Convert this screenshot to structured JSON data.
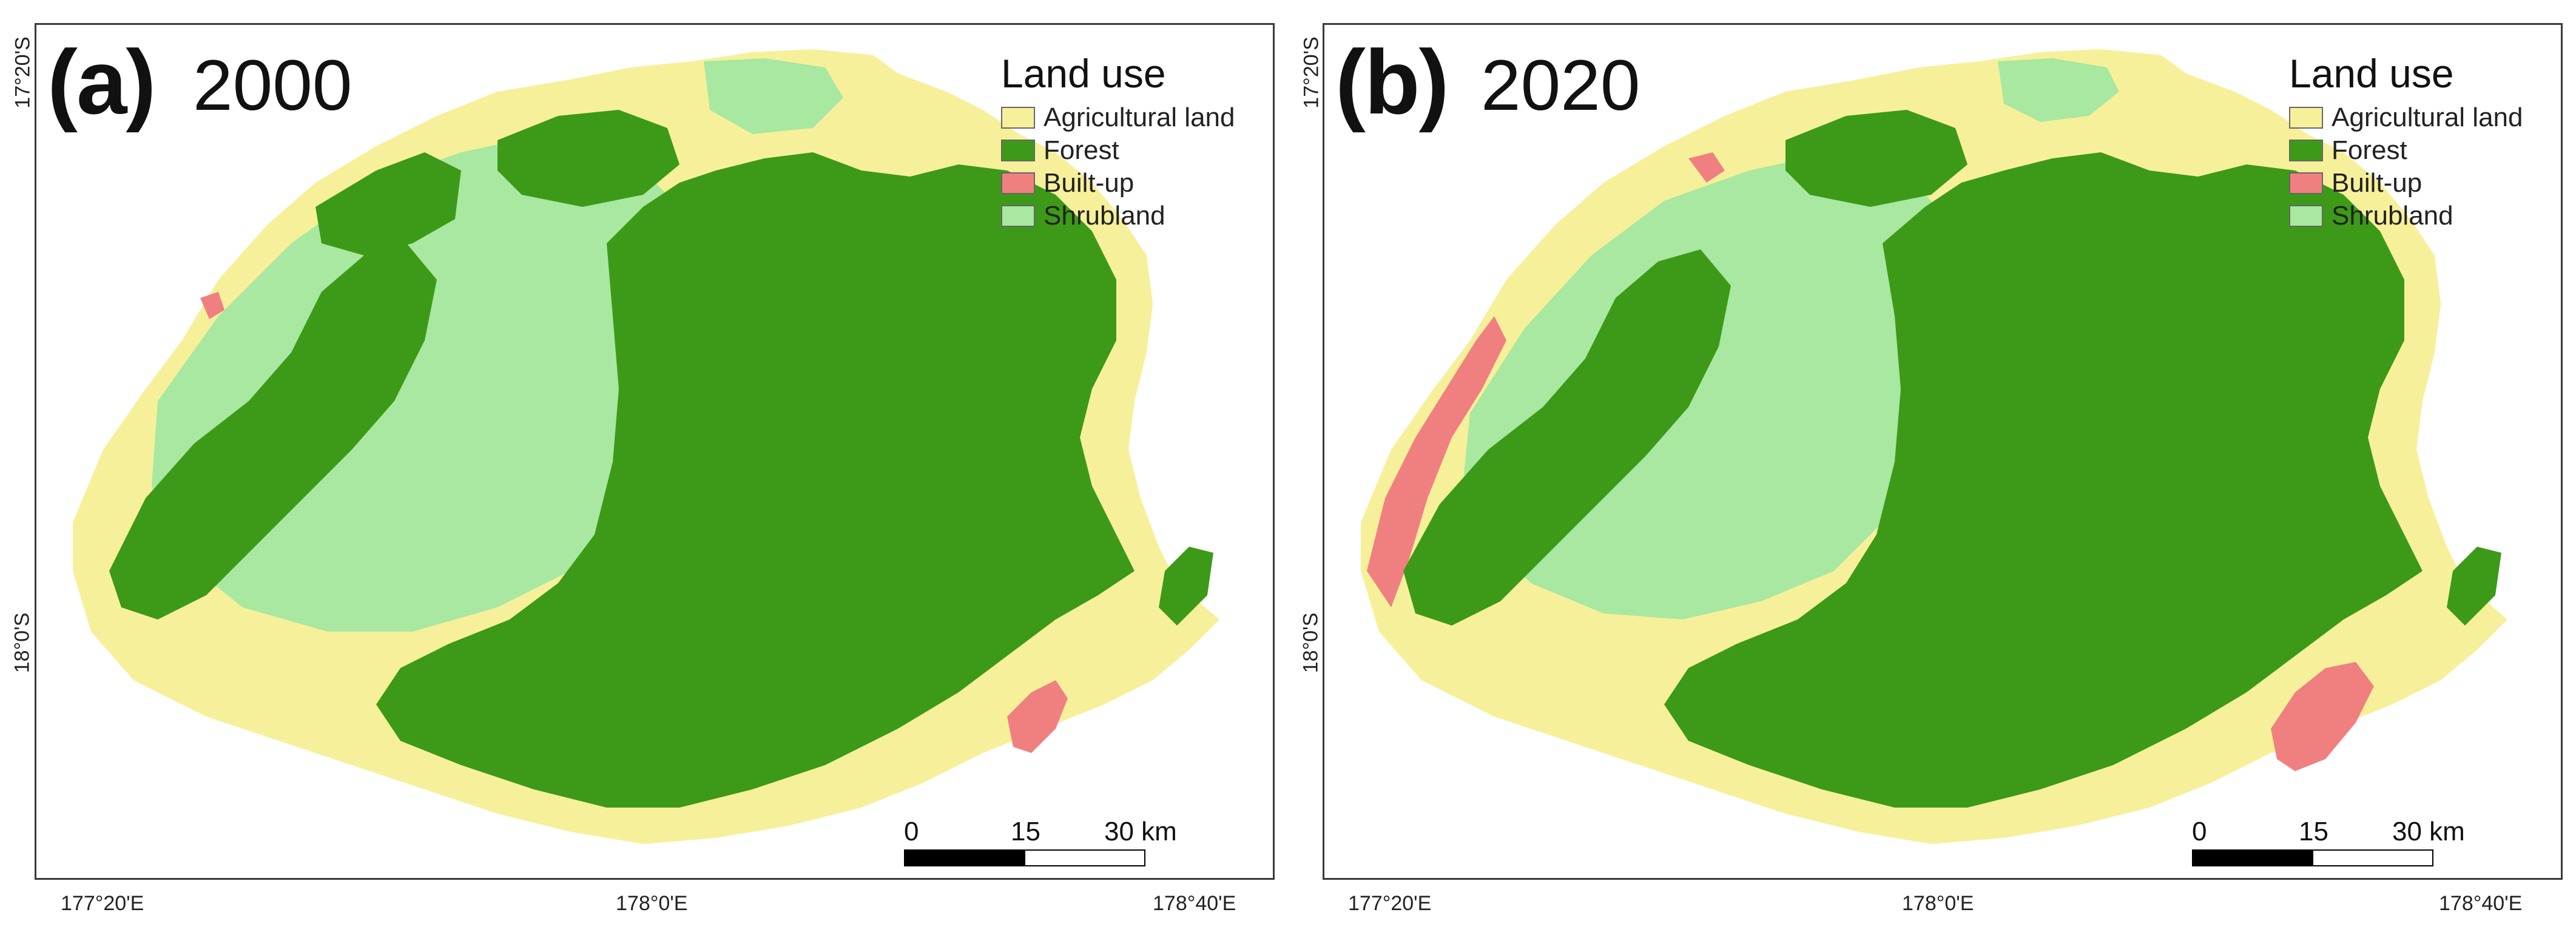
{
  "legend": {
    "title": "Land use",
    "items": [
      {
        "label": "Agricultural land",
        "color": "#f7f09a"
      },
      {
        "label": "Forest",
        "color": "#3c9a18"
      },
      {
        "label": "Built-up",
        "color": "#f08080"
      },
      {
        "label": "Shrubland",
        "color": "#a8e8a0"
      }
    ]
  },
  "panels": [
    {
      "letter": "(a)",
      "year": "2000"
    },
    {
      "letter": "(b)",
      "year": "2020"
    }
  ],
  "scale": {
    "labels": [
      "0",
      "15",
      "30 km"
    ]
  },
  "axes": {
    "lon_ticks": [
      "177°20'E",
      "178°0'E",
      "178°40'E"
    ],
    "lat_ticks": [
      "17°20'S",
      "18°0'S"
    ]
  }
}
